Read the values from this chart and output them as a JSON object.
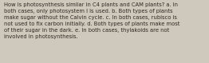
{
  "text": "How is photosynthesis similar in C4 plants and CAM plants? a. In\nboth cases, only photosystem I is used. b. Both types of plants\nmake sugar without the Calvin cycle. c. In both cases, rubisco is\nnot used to fix carbon initially. d. Both types of plants make most\nof their sugar in the dark. e. In both cases, thylakoids are not\ninvolved in photosynthesis.",
  "background_color": "#cfc8bc",
  "text_color": "#2e2a24",
  "font_size": 4.85,
  "fig_width": 2.62,
  "fig_height": 0.79,
  "dpi": 100
}
